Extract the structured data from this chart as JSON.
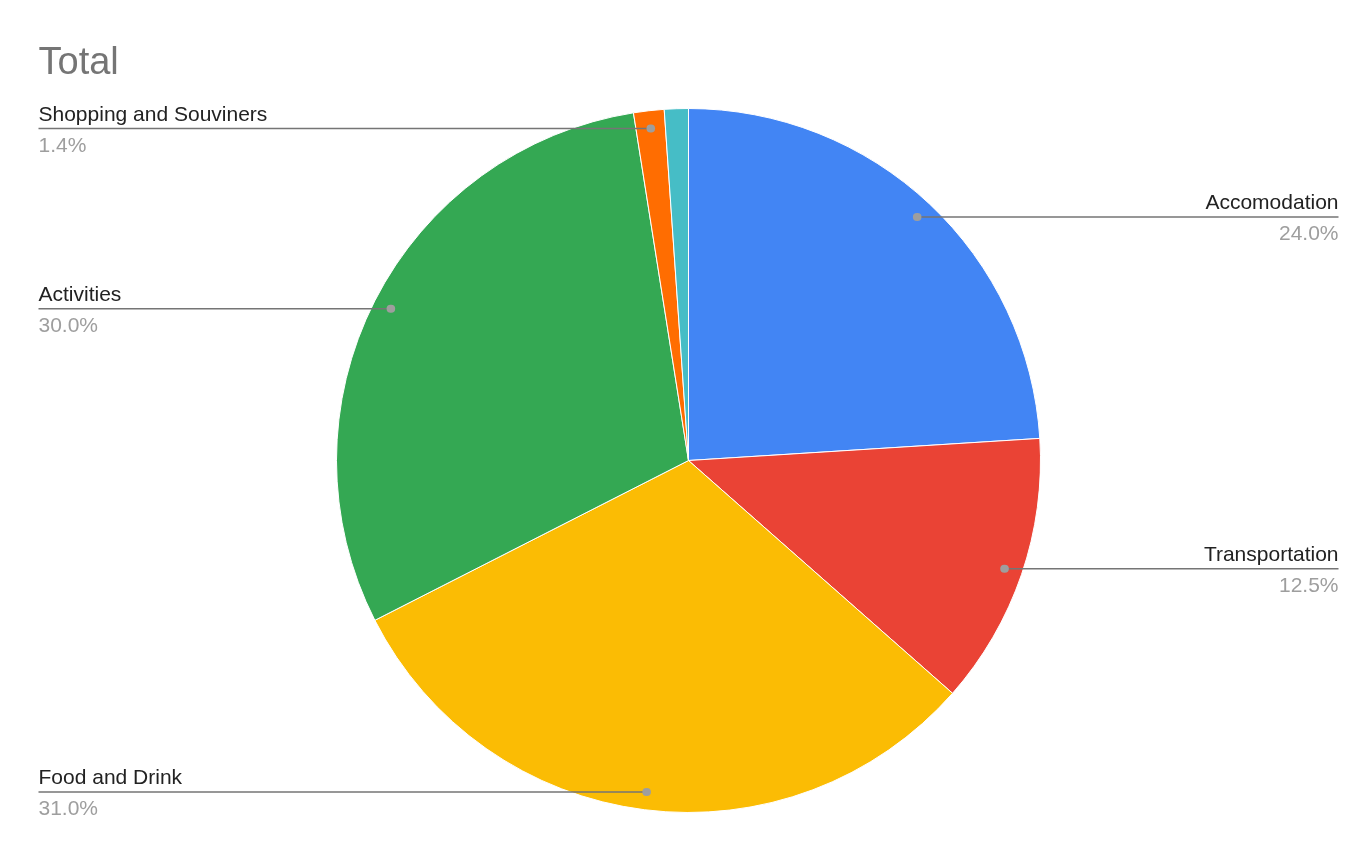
{
  "chart_data": {
    "type": "pie",
    "title": "Total",
    "categories": [
      "Accomodation",
      "Transportation",
      "Food and Drink",
      "Activities",
      "Shopping and Souviners",
      null
    ],
    "values": [
      24.0,
      12.5,
      31.0,
      30.0,
      1.4,
      1.1
    ],
    "colors": [
      "#4285f4",
      "#ea4335",
      "#fbbc04",
      "#34a853",
      "#ff6d01",
      "#46bdc6"
    ],
    "value_labels": [
      "24.0%",
      "12.5%",
      "31.0%",
      "30.0%",
      "1.4%",
      null
    ]
  }
}
